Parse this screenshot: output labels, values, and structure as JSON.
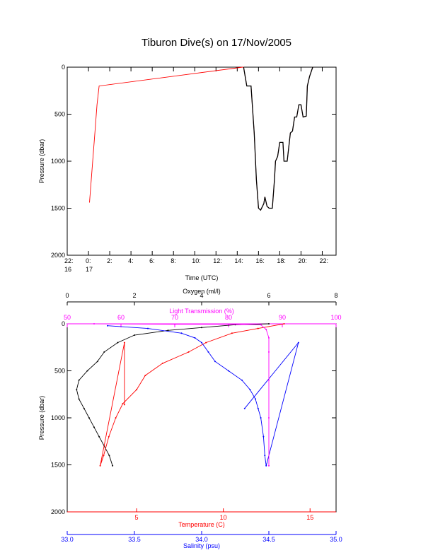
{
  "title": "Tiburon Dive(s) on 17/Nov/2005",
  "colors": {
    "axis": "#000000",
    "red": "#ff0000",
    "black": "#000000",
    "blue": "#0000ff",
    "magenta": "#ff00ff",
    "temperature_axis": "#ff0000",
    "salinity_axis": "#0000ff",
    "transmission_axis": "#ff00ff",
    "oxygen_axis": "#000000"
  },
  "chart_data": [
    {
      "type": "line",
      "ylabel": "Pressure (dbar)",
      "xlabel": "Time (UTC)",
      "ylim": [
        2000,
        0
      ],
      "xlim": [
        -2,
        23.3
      ],
      "x_ticks": [
        {
          "v": -2,
          "l1": "22:",
          "l2": "16"
        },
        {
          "v": 0,
          "l1": "0:",
          "l2": "17"
        },
        {
          "v": 2,
          "l1": "2:",
          "l2": ""
        },
        {
          "v": 4,
          "l1": "4:",
          "l2": ""
        },
        {
          "v": 6,
          "l1": "6:",
          "l2": ""
        },
        {
          "v": 8,
          "l1": "8:",
          "l2": ""
        },
        {
          "v": 10,
          "l1": "10:",
          "l2": ""
        },
        {
          "v": 12,
          "l1": "12:",
          "l2": ""
        },
        {
          "v": 14,
          "l1": "14:",
          "l2": ""
        },
        {
          "v": 16,
          "l1": "16:",
          "l2": ""
        },
        {
          "v": 18,
          "l1": "18:",
          "l2": ""
        },
        {
          "v": 20,
          "l1": "20:",
          "l2": ""
        },
        {
          "v": 22,
          "l1": "22:",
          "l2": ""
        }
      ],
      "y_ticks": [
        0,
        500,
        1000,
        1500,
        2000
      ],
      "series": [
        {
          "color": "red",
          "points": [
            [
              0.1,
              1440
            ],
            [
              0.4,
              1000
            ],
            [
              0.6,
              700
            ],
            [
              0.8,
              400
            ],
            [
              1.0,
              200
            ],
            [
              14.5,
              0
            ],
            [
              14.6,
              0
            ],
            [
              14.9,
              200
            ],
            [
              15.3,
              200
            ],
            [
              15.6,
              700
            ],
            [
              15.8,
              1200
            ],
            [
              16.0,
              1500
            ],
            [
              16.2,
              1520
            ],
            [
              16.5,
              1450
            ],
            [
              16.6,
              1380
            ],
            [
              16.8,
              1480
            ],
            [
              17.0,
              1500
            ],
            [
              17.3,
              1500
            ],
            [
              17.5,
              1200
            ],
            [
              17.6,
              1000
            ],
            [
              17.8,
              950
            ],
            [
              18.0,
              800
            ],
            [
              18.3,
              800
            ],
            [
              18.4,
              1000
            ],
            [
              18.7,
              1000
            ],
            [
              18.9,
              800
            ],
            [
              19.0,
              700
            ],
            [
              19.2,
              680
            ],
            [
              19.4,
              530
            ],
            [
              19.6,
              530
            ],
            [
              19.8,
              400
            ],
            [
              20.0,
              400
            ],
            [
              20.2,
              530
            ],
            [
              20.5,
              520
            ],
            [
              20.6,
              200
            ],
            [
              20.8,
              100
            ],
            [
              21.1,
              0
            ]
          ]
        },
        {
          "color": "black",
          "points": [
            [
              14.6,
              0
            ],
            [
              14.9,
              200
            ],
            [
              15.3,
              200
            ],
            [
              15.6,
              700
            ],
            [
              15.8,
              1200
            ],
            [
              16.0,
              1500
            ],
            [
              16.2,
              1520
            ],
            [
              16.5,
              1450
            ],
            [
              16.6,
              1380
            ],
            [
              16.8,
              1480
            ],
            [
              17.0,
              1500
            ],
            [
              17.3,
              1500
            ],
            [
              17.5,
              1200
            ],
            [
              17.6,
              1000
            ],
            [
              17.8,
              950
            ],
            [
              18.0,
              800
            ],
            [
              18.3,
              800
            ],
            [
              18.4,
              1000
            ],
            [
              18.7,
              1000
            ],
            [
              18.9,
              800
            ],
            [
              19.0,
              700
            ],
            [
              19.2,
              680
            ],
            [
              19.4,
              530
            ],
            [
              19.6,
              530
            ],
            [
              19.8,
              400
            ],
            [
              20.0,
              400
            ],
            [
              20.2,
              530
            ],
            [
              20.5,
              520
            ],
            [
              20.6,
              200
            ],
            [
              20.8,
              100
            ],
            [
              21.1,
              0
            ]
          ]
        }
      ]
    },
    {
      "type": "line",
      "ylabel": "Pressure (dbar)",
      "ylim": [
        2000,
        0
      ],
      "y_ticks": [
        0,
        500,
        1000,
        1500,
        2000
      ],
      "axes": {
        "oxygen": {
          "label": "Oxygen (ml/l)",
          "min": 0,
          "max": 8,
          "ticks": [
            0,
            2,
            4,
            6,
            8
          ],
          "position": "top"
        },
        "transmission": {
          "label": "Light Transmission (%)",
          "min": 50,
          "max": 100,
          "ticks": [
            50,
            60,
            70,
            80,
            90,
            100
          ],
          "position": "top"
        },
        "temperature": {
          "label": "Temperature (C)",
          "min": 1,
          "max": 16.5,
          "ticks": [
            5,
            10,
            15
          ],
          "position": "bottom"
        },
        "salinity": {
          "label": "Salinity (psu)",
          "min": 33.0,
          "max": 35.0,
          "ticks": [
            "33.0",
            "33.5",
            "34.0",
            "34.5",
            "35.0"
          ],
          "position": "bottom"
        }
      },
      "series": [
        {
          "name": "Oxygen",
          "axis": "oxygen",
          "color": "black",
          "points": [
            [
              6.0,
              0
            ],
            [
              5.0,
              10
            ],
            [
              4.0,
              40
            ],
            [
              3.0,
              70
            ],
            [
              2.0,
              120
            ],
            [
              1.5,
              200
            ],
            [
              1.1,
              300
            ],
            [
              0.9,
              400
            ],
            [
              0.6,
              500
            ],
            [
              0.35,
              600
            ],
            [
              0.28,
              700
            ],
            [
              0.35,
              800
            ],
            [
              0.5,
              900
            ],
            [
              0.65,
              1000
            ],
            [
              0.8,
              1100
            ],
            [
              0.95,
              1200
            ],
            [
              1.1,
              1300
            ],
            [
              1.25,
              1400
            ],
            [
              1.35,
              1510
            ]
          ]
        },
        {
          "name": "Temperature",
          "axis": "temperature",
          "color": "red",
          "points": [
            [
              13.5,
              0
            ],
            [
              12.0,
              50
            ],
            [
              10.5,
              100
            ],
            [
              9.0,
              200
            ],
            [
              8.0,
              300
            ],
            [
              6.5,
              420
            ],
            [
              5.5,
              550
            ],
            [
              5.0,
              700
            ],
            [
              4.2,
              850
            ],
            [
              3.8,
              1000
            ],
            [
              3.4,
              1200
            ],
            [
              3.1,
              1400
            ],
            [
              2.9,
              1510
            ],
            [
              4.3,
              200
            ],
            [
              4.3,
              860
            ]
          ]
        },
        {
          "name": "Salinity",
          "axis": "salinity",
          "color": "blue",
          "points": [
            [
              33.3,
              20
            ],
            [
              33.6,
              50
            ],
            [
              33.85,
              100
            ],
            [
              33.95,
              150
            ],
            [
              34.0,
              200
            ],
            [
              34.05,
              300
            ],
            [
              34.1,
              400
            ],
            [
              34.2,
              500
            ],
            [
              34.3,
              600
            ],
            [
              34.36,
              700
            ],
            [
              34.4,
              800
            ],
            [
              34.42,
              900
            ],
            [
              34.44,
              1000
            ],
            [
              34.46,
              1200
            ],
            [
              34.47,
              1400
            ],
            [
              34.48,
              1510
            ],
            [
              34.72,
              200
            ],
            [
              34.32,
              900
            ]
          ]
        },
        {
          "name": "Light Transmission",
          "axis": "transmission",
          "color": "magenta",
          "points": [
            [
              55,
              0
            ],
            [
              70,
              5
            ],
            [
              80,
              5
            ],
            [
              86,
              10
            ],
            [
              87,
              60
            ],
            [
              87.5,
              150
            ],
            [
              87.5,
              300
            ],
            [
              87.5,
              600
            ],
            [
              87.5,
              1000
            ],
            [
              87.5,
              1510
            ]
          ]
        }
      ]
    }
  ]
}
